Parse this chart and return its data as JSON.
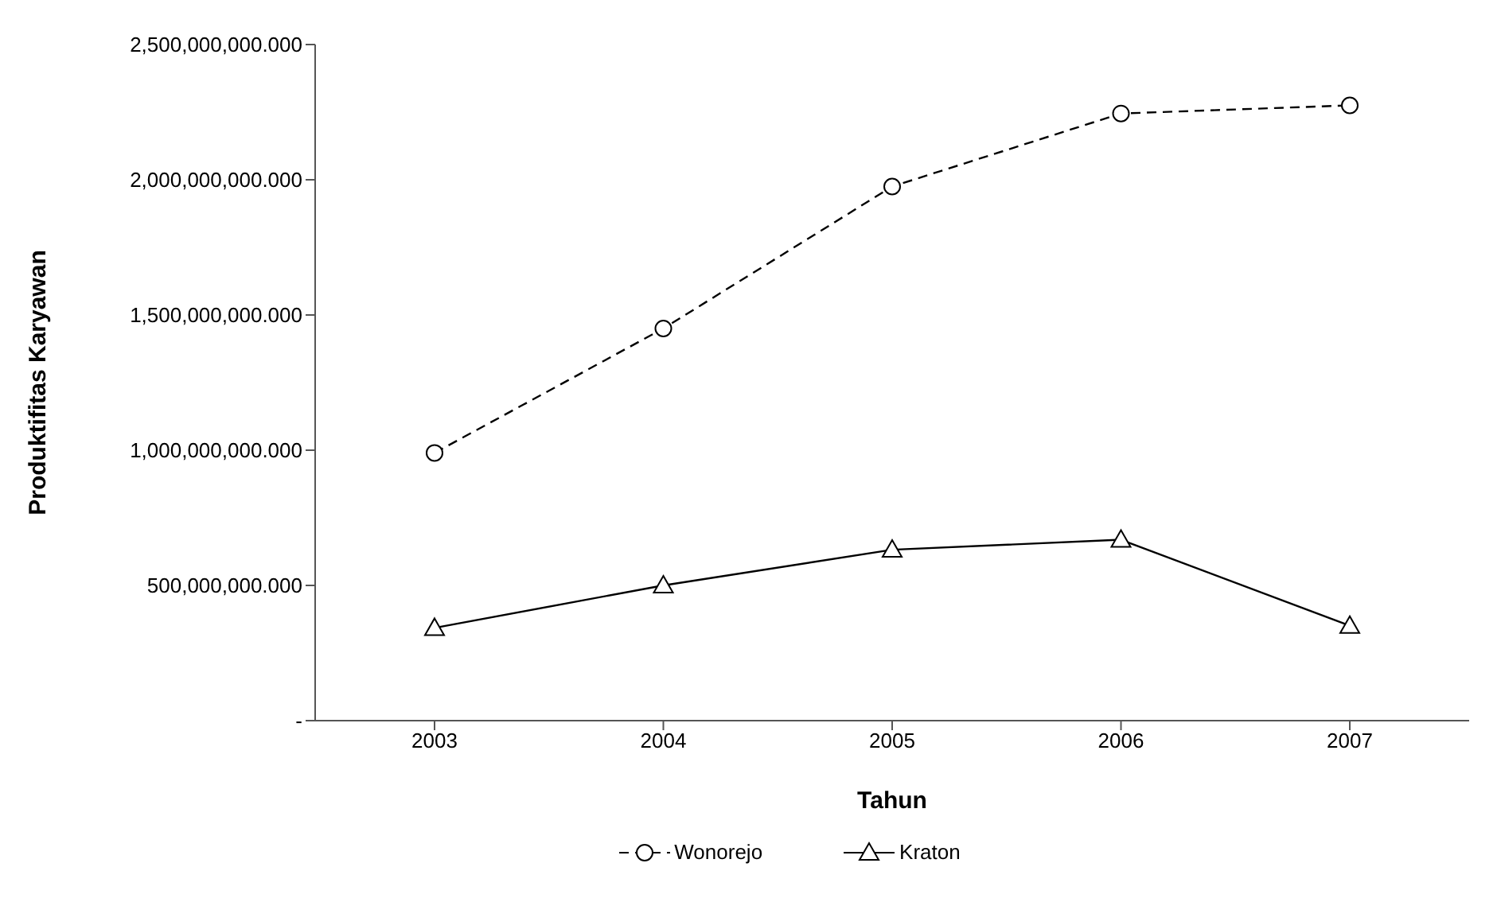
{
  "chart_data": {
    "type": "line",
    "xlabel": "Tahun",
    "ylabel": "Produktifitas Karyawan",
    "categories": [
      "2003",
      "2004",
      "2005",
      "2006",
      "2007"
    ],
    "series": [
      {
        "name": "Wonorejo",
        "color": "#000000",
        "marker": "circle",
        "line_style": "dashed",
        "values": [
          990000000,
          1450000000,
          1975000000,
          2245000000,
          2275000000
        ]
      },
      {
        "name": "Kraton",
        "color": "#000000",
        "marker": "triangle",
        "line_style": "solid",
        "values": [
          343000000,
          500000000,
          632000000,
          669000000,
          351000000
        ]
      }
    ],
    "ylim": [
      0,
      2500000000
    ],
    "yticks": [
      {
        "value": 0,
        "label": "-"
      },
      {
        "value": 500000000,
        "label": "500,000,000.000"
      },
      {
        "value": 1000000000,
        "label": "1,000,000,000.000"
      },
      {
        "value": 1500000000,
        "label": "1,500,000,000.000"
      },
      {
        "value": 2000000000,
        "label": "2,000,000,000.000"
      },
      {
        "value": 2500000000,
        "label": "2,500,000,000.000"
      }
    ],
    "grid": false,
    "legend": "bottom"
  }
}
